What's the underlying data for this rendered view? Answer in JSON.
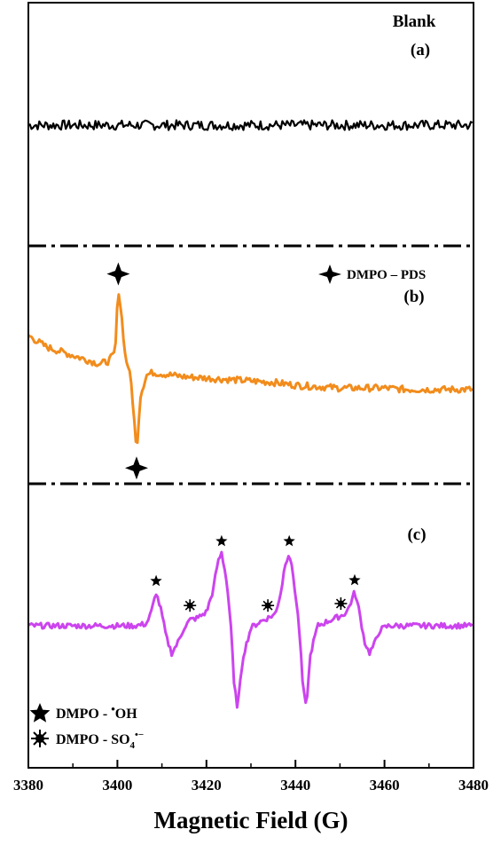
{
  "chart_data": {
    "type": "line",
    "xlabel": "Magnetic Field (G)",
    "xlim": [
      3380,
      3480
    ],
    "x_ticks": [
      "3380",
      "3400",
      "3420",
      "3440",
      "3460",
      "3480"
    ],
    "panels": [
      {
        "id": "a",
        "label": "(a)",
        "title": "Blank",
        "color": "#000000",
        "noise": 0.28,
        "series": {
          "x": [
            3380,
            3480
          ],
          "y": [
            0,
            0
          ]
        }
      },
      {
        "id": "b",
        "label": "(b)",
        "color": "#f28c1c",
        "noise": 0.12,
        "legend": [
          {
            "marker": "cross-star",
            "text": "DMPO – PDS"
          }
        ],
        "peaks": [
          {
            "x": 3400.2,
            "y": 2.7,
            "marker": "cross-star"
          },
          {
            "x": 3404.3,
            "y": -3.1,
            "marker": "cross-star"
          }
        ],
        "series": {
          "x": [
            3380,
            3382,
            3384,
            3386,
            3388,
            3390,
            3392,
            3394,
            3396,
            3398,
            3399.5,
            3400.2,
            3401,
            3401.8,
            3402.5,
            3403.2,
            3404.3,
            3405.2,
            3406.5,
            3408,
            3410,
            3415,
            3420,
            3425,
            3430,
            3435,
            3440,
            3445,
            3450,
            3455,
            3460,
            3465,
            3470,
            3475,
            3480
          ],
          "y": [
            1.0,
            0.8,
            0.6,
            0.5,
            0.4,
            0.3,
            0.2,
            0.1,
            0.0,
            0.1,
            0.4,
            2.7,
            1.6,
            0.2,
            -0.1,
            -0.8,
            -3.1,
            -1.1,
            -0.4,
            -0.3,
            -0.35,
            -0.45,
            -0.5,
            -0.55,
            -0.6,
            -0.65,
            -0.75,
            -0.8,
            -0.85,
            -0.85,
            -0.85,
            -0.9,
            -0.9,
            -0.9,
            -0.9
          ]
        }
      },
      {
        "id": "c",
        "label": "(c)",
        "color": "#cc44ee",
        "noise": 0.07,
        "legend": [
          {
            "marker": "star",
            "text": "DMPO - OH"
          },
          {
            "marker": "sun",
            "text": "DMPO - SO4•−"
          }
        ],
        "oh_peaks": [
          {
            "x": 3408.7,
            "y": 0.85
          },
          {
            "x": 3423.4,
            "y": 1.87
          },
          {
            "x": 3438.6,
            "y": 1.87
          },
          {
            "x": 3453.3,
            "y": 0.87
          }
        ],
        "so4_peaks": [
          {
            "x": 3416.3,
            "y": 0.2
          },
          {
            "x": 3433.8,
            "y": 0.2
          },
          {
            "x": 3450.2,
            "y": 0.25
          }
        ],
        "series": {
          "x": [
            3380,
            3384,
            3388,
            3392,
            3396,
            3400,
            3404,
            3406.5,
            3407.5,
            3408.7,
            3409.8,
            3411,
            3412.2,
            3413.5,
            3415,
            3416.3,
            3418,
            3420,
            3421.5,
            3422.5,
            3423.4,
            3424.5,
            3425.5,
            3426.2,
            3427,
            3428.2,
            3430,
            3432,
            3433.8,
            3435.5,
            3436.8,
            3437.7,
            3438.6,
            3439.6,
            3440.8,
            3441.7,
            3442.4,
            3443.4,
            3445,
            3447,
            3449,
            3450.2,
            3451.5,
            3452.3,
            3453.3,
            3454.3,
            3455.5,
            3456.6,
            3457.6,
            3459,
            3461,
            3465,
            3470,
            3475,
            3480
          ],
          "y": [
            0,
            0,
            0,
            0,
            0,
            0,
            0,
            0.05,
            0.3,
            0.85,
            0.4,
            -0.3,
            -0.7,
            -0.45,
            -0.05,
            0.15,
            0.2,
            0.35,
            0.9,
            1.6,
            1.87,
            1.2,
            0.0,
            -1.5,
            -2.1,
            -0.8,
            -0.05,
            0.1,
            0.2,
            0.3,
            0.9,
            1.6,
            1.87,
            1.2,
            0.0,
            -1.6,
            -2.1,
            -0.7,
            0.0,
            0.1,
            0.2,
            0.25,
            0.35,
            0.55,
            0.87,
            0.4,
            -0.4,
            -0.7,
            -0.5,
            -0.1,
            0.0,
            0.0,
            0.0,
            0.0,
            0.0
          ]
        }
      }
    ]
  },
  "legend_c": {
    "oh_prefix": "DMPO - ",
    "oh_suffix": "OH",
    "so4_prefix": "DMPO - SO",
    "so4_sub": "4",
    "so4_sup": "•−"
  }
}
